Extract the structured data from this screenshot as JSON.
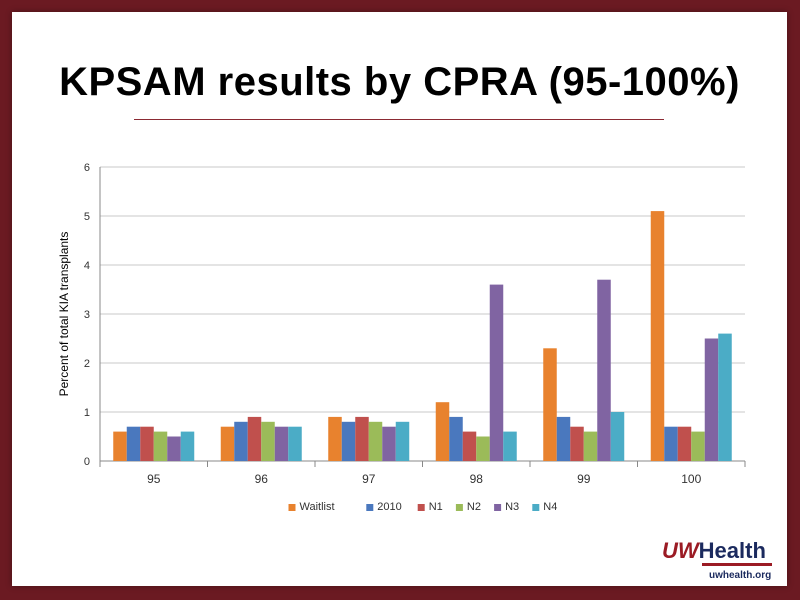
{
  "slide": {
    "title": "KPSAM results by CPRA (95-100%)"
  },
  "logo": {
    "uw": "UW",
    "health": "Health",
    "url": "uwhealth.org"
  },
  "chart_data": {
    "type": "bar",
    "title": "",
    "xlabel": "",
    "ylabel": "Percent of total KIA transplants",
    "ylim": [
      0,
      6
    ],
    "yticks": [
      0,
      1,
      2,
      3,
      4,
      5,
      6
    ],
    "grid": true,
    "legend_position": "bottom",
    "categories": [
      "95",
      "96",
      "97",
      "98",
      "99",
      "100"
    ],
    "series": [
      {
        "name": "Waitlist",
        "color": "#e8822e",
        "values": [
          0.6,
          0.7,
          0.9,
          1.2,
          2.3,
          5.1
        ]
      },
      {
        "name": "2010",
        "color": "#4a78be",
        "values": [
          0.7,
          0.8,
          0.8,
          0.9,
          0.9,
          0.7
        ]
      },
      {
        "name": "N1",
        "color": "#c0504d",
        "values": [
          0.7,
          0.9,
          0.9,
          0.6,
          0.7,
          0.7
        ]
      },
      {
        "name": "N2",
        "color": "#9bbb59",
        "values": [
          0.6,
          0.8,
          0.8,
          0.5,
          0.6,
          0.6
        ]
      },
      {
        "name": "N3",
        "color": "#8064a2",
        "values": [
          0.5,
          0.7,
          0.7,
          3.6,
          3.7,
          2.5
        ]
      },
      {
        "name": "N4",
        "color": "#4bacc6",
        "values": [
          0.6,
          0.7,
          0.8,
          0.6,
          1.0,
          2.6
        ]
      }
    ]
  }
}
